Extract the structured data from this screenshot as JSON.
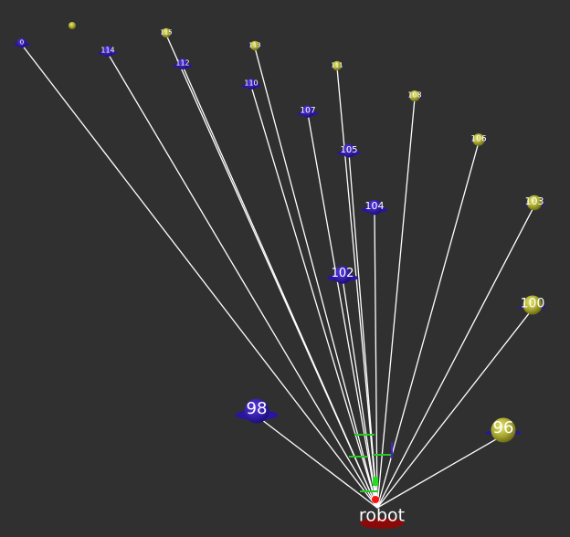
{
  "robot": {
    "label": "robot"
  },
  "nodes": [
    {
      "label": "0",
      "color": "blue"
    },
    {
      "label": "114",
      "color": "blue"
    },
    {
      "label": "115",
      "color": "yellow"
    },
    {
      "label": "113",
      "color": "yellow"
    },
    {
      "label": "112",
      "color": "blue"
    },
    {
      "label": "110",
      "color": "blue"
    },
    {
      "label": "111",
      "color": "yellow"
    },
    {
      "label": "108",
      "color": "yellow"
    },
    {
      "label": "107",
      "color": "blue"
    },
    {
      "label": "105",
      "color": "blue"
    },
    {
      "label": "106",
      "color": "yellow"
    },
    {
      "label": "104",
      "color": "blue"
    },
    {
      "label": "103",
      "color": "yellow"
    },
    {
      "label": "102",
      "color": "blue"
    },
    {
      "label": "100",
      "color": "yellow"
    },
    {
      "label": "98",
      "color": "blue"
    },
    {
      "label": "96",
      "color": "yellow"
    }
  ]
}
